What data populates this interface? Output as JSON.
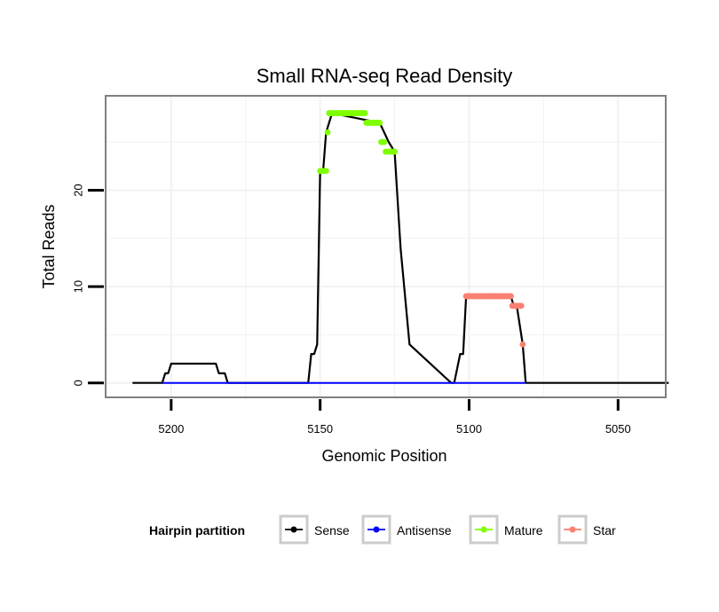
{
  "chart_data": {
    "type": "line",
    "title": "Small RNA-seq Read Density",
    "xlabel": "Genomic Position",
    "ylabel": "Total Reads",
    "x_reversed": true,
    "xlim": [
      5034,
      5222
    ],
    "ylim": [
      -1.5,
      29.8
    ],
    "x_ticks": [
      5200,
      5150,
      5100,
      5050
    ],
    "x_tick_labels": [
      "5200",
      "5150",
      "5100",
      "5050"
    ],
    "y_ticks": [
      0,
      10,
      20
    ],
    "y_tick_labels": [
      "0",
      "10",
      "20"
    ],
    "grid": true,
    "legend": {
      "title": "Hairpin partition",
      "position": "bottom",
      "entries": [
        {
          "label": "Sense",
          "color": "#000000"
        },
        {
          "label": "Antisense",
          "color": "#0000ff"
        },
        {
          "label": "Mature",
          "color": "#7fff00"
        },
        {
          "label": "Star",
          "color": "#fa8072"
        }
      ]
    },
    "series": [
      {
        "name": "Sense",
        "color": "#000000",
        "x": [
          5213,
          5203,
          5202,
          5201,
          5200,
          5185,
          5184,
          5182,
          5181,
          5154,
          5153,
          5152,
          5151,
          5150,
          5149,
          5148,
          5146,
          5130,
          5127,
          5125,
          5123,
          5120,
          5106,
          5105,
          5103,
          5102,
          5101,
          5086,
          5085,
          5084,
          5082,
          5081,
          5080,
          5033
        ],
        "y": [
          0,
          0,
          1,
          1,
          2,
          2,
          1,
          1,
          0,
          0,
          3,
          3,
          4,
          22,
          22,
          26,
          28,
          27,
          25,
          24,
          14,
          4,
          0,
          0,
          3,
          3,
          9,
          9,
          8,
          8,
          4,
          0,
          0,
          0
        ]
      },
      {
        "name": "Antisense",
        "color": "#0000ff",
        "x": [
          5203,
          5081
        ],
        "y": [
          0,
          0
        ]
      },
      {
        "name": "Mature",
        "color": "#7fff00",
        "x": [
          5150,
          5149.5,
          5149,
          5148.5,
          5148,
          5147.5,
          5147,
          5146.5,
          5146,
          5145.5,
          5145,
          5144.5,
          5144,
          5143.5,
          5143,
          5142.5,
          5142,
          5141.5,
          5141,
          5140.5,
          5140,
          5139.5,
          5139,
          5138.5,
          5138,
          5137.5,
          5137,
          5136.5,
          5136,
          5135.5,
          5135,
          5134.5,
          5134,
          5133.5,
          5133,
          5132.5,
          5132,
          5131.5,
          5131,
          5130.5,
          5130,
          5129.5,
          5129,
          5128.5,
          5128,
          5127.5,
          5127,
          5126.5,
          5126,
          5125.5,
          5125
        ],
        "y": [
          22,
          22,
          22,
          22,
          22,
          26,
          28,
          28,
          28,
          28,
          28,
          28,
          28,
          28,
          28,
          28,
          28,
          28,
          28,
          28,
          28,
          28,
          28,
          28,
          28,
          28,
          28,
          28,
          28,
          28,
          28,
          27,
          27,
          27,
          27,
          27,
          27,
          27,
          27,
          27,
          27,
          25,
          25,
          25,
          24,
          24,
          24,
          24,
          24,
          24,
          24
        ]
      },
      {
        "name": "Star",
        "color": "#fa8072",
        "x": [
          5101,
          5100.5,
          5100,
          5099.5,
          5099,
          5098.5,
          5098,
          5097.5,
          5097,
          5096.5,
          5096,
          5095.5,
          5095,
          5094.5,
          5094,
          5093.5,
          5093,
          5092.5,
          5092,
          5091.5,
          5091,
          5090.5,
          5090,
          5089.5,
          5089,
          5088.5,
          5088,
          5087.5,
          5087,
          5086.5,
          5086,
          5085.5,
          5085,
          5084.5,
          5084,
          5083.5,
          5083,
          5082.5,
          5082
        ],
        "y": [
          9,
          9,
          9,
          9,
          9,
          9,
          9,
          9,
          9,
          9,
          9,
          9,
          9,
          9,
          9,
          9,
          9,
          9,
          9,
          9,
          9,
          9,
          9,
          9,
          9,
          9,
          9,
          9,
          9,
          9,
          9,
          8,
          8,
          8,
          8,
          8,
          8,
          8,
          4
        ]
      }
    ]
  }
}
